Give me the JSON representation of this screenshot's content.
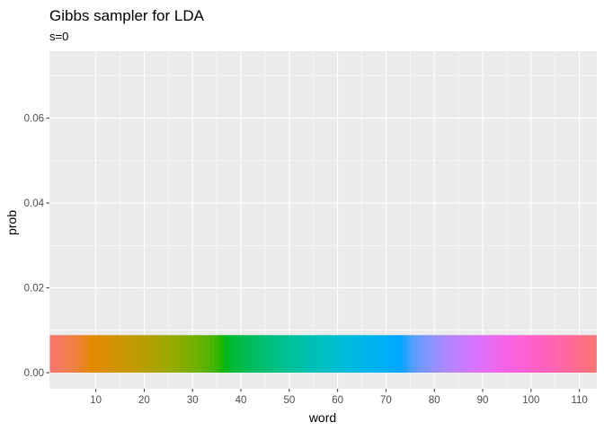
{
  "chart_data": {
    "type": "bar",
    "title": "Gibbs sampler for LDA",
    "subtitle": "s=0",
    "xlabel": "word",
    "ylabel": "prob",
    "xlim": [
      0.4,
      113.6
    ],
    "ylim": [
      -0.0038,
      0.0758
    ],
    "x_ticks": [
      10,
      20,
      30,
      40,
      50,
      60,
      70,
      80,
      90,
      100,
      110
    ],
    "y_ticks": [
      0.0,
      0.02,
      0.04,
      0.06
    ],
    "y_tick_labels": [
      "0.00",
      "0.02",
      "0.04",
      "0.06"
    ],
    "grid": true,
    "legend": "none",
    "n_words": 113,
    "value": 0.00885,
    "color_scale": "hue",
    "panel_background": "#ebebeb",
    "grid_color": "#ffffff"
  }
}
